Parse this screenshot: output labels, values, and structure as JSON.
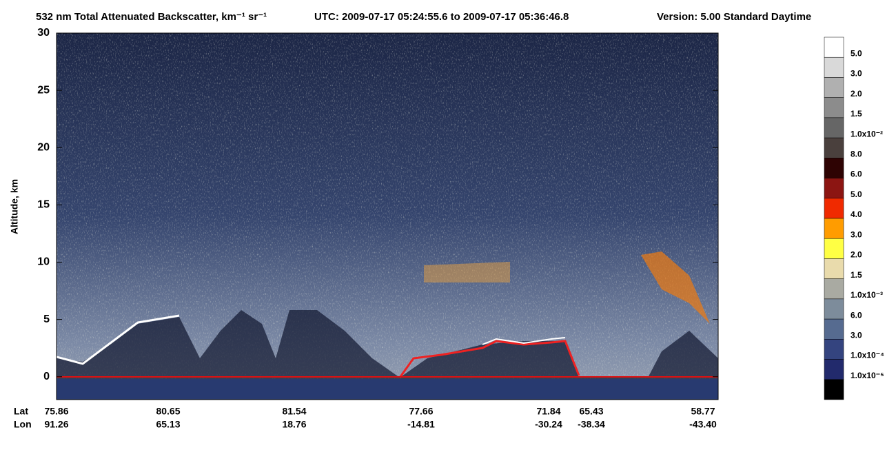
{
  "chart_data": {
    "type": "curtain",
    "title": "532 nm Total Attenuated Backscatter, km⁻¹ sr⁻¹",
    "subtitle": "UTC:  2009-07-17 05:24:55.6  to  2009-07-17 05:36:46.8",
    "version": "Version: 5.00  Standard  Daytime",
    "ylabel": "Altitude, km",
    "ylim": [
      -2,
      30
    ],
    "yticks": [
      0,
      5,
      10,
      15,
      20,
      25,
      30
    ],
    "row_labels": [
      "Lat",
      "Lon"
    ],
    "lat": [
      "75.86",
      "80.65",
      "81.54",
      "77.66",
      "71.84",
      "65.43",
      "58.77"
    ],
    "lon": [
      "91.26",
      "65.13",
      "18.76",
      "-14.81",
      "-30.24",
      "-38.34",
      "-43.40"
    ],
    "colorbar": {
      "labels": [
        "5.0",
        "3.0",
        "2.0",
        "1.5",
        "1.0x10⁻²",
        "8.0",
        "6.0",
        "5.0",
        "4.0",
        "3.0",
        "2.0",
        "1.5",
        "1.0x10⁻³",
        "6.0",
        "3.0",
        "1.0x10⁻⁴",
        "1.0x10⁻⁵"
      ],
      "colors": [
        "#ffffff",
        "#d9d9d9",
        "#b0b0b0",
        "#8c8c8c",
        "#666666",
        "#4a403d",
        "#2e0303",
        "#8c1512",
        "#f02a00",
        "#ff9c00",
        "#ffff44",
        "#e9dbac",
        "#a9aaa2",
        "#7d8c9b",
        "#566b90",
        "#34447f",
        "#222a6c",
        "#000000"
      ]
    }
  }
}
